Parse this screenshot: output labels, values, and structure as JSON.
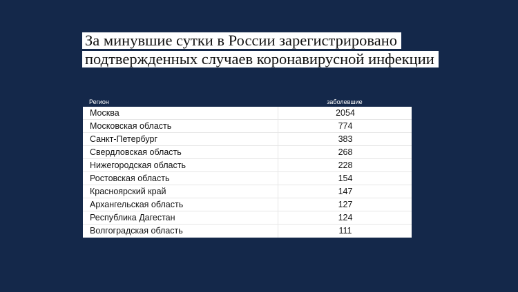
{
  "title": {
    "line1": "За минувшие сутки в России зарегистрировано",
    "line2": "подтвержденных случаев коронавирусной инфекции"
  },
  "table": {
    "headers": [
      "Регион",
      "заболевшие"
    ],
    "rows": [
      [
        "Москва",
        "2054"
      ],
      [
        "Московская область",
        "774"
      ],
      [
        "Санкт-Петербург",
        "383"
      ],
      [
        "Свердловская область",
        "268"
      ],
      [
        "Нижегородская область",
        "228"
      ],
      [
        "Ростовская область",
        "154"
      ],
      [
        "Красноярский край",
        "147"
      ],
      [
        "Архангельская область",
        "127"
      ],
      [
        "Республика Дагестан",
        "124"
      ],
      [
        "Волгоградская область",
        "111"
      ]
    ]
  },
  "colors": {
    "background": "#14284a",
    "panel": "#ffffff"
  }
}
